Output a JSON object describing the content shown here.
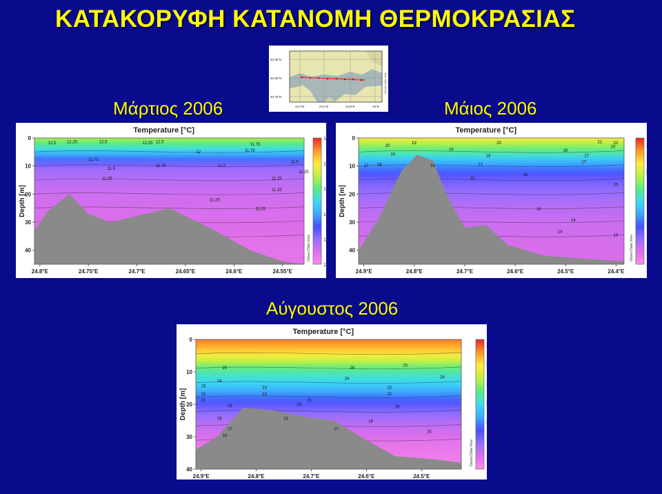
{
  "page": {
    "title": "ΚΑΤΑΚΟΡΥΦΗ ΚΑΤΑΝΟΜΗ ΘΕΡΜΟΚΡΑΣΙΑΣ",
    "colors": {
      "background": "#0a0a8c",
      "title": "#ffff00"
    }
  },
  "minimap": {
    "lat_labels": [
      "40.95°N",
      "40.85°N",
      "40.75°N"
    ],
    "lon_labels": [
      "24.4°E",
      "24.6°E",
      "24.8°E",
      "25°E"
    ],
    "watermark": "Ocean Data View"
  },
  "chart_data": [
    {
      "type": "heatmap",
      "panel_title": "Μάρτιος 2006",
      "title": "Temperature [°C]",
      "ylabel": "Depth [m]",
      "watermark": "Ocean Data View",
      "x_ticks": [
        "24.8°E",
        "24.75°E",
        "24.7°E",
        "24.65°E",
        "24.6°E",
        "24.55°E"
      ],
      "y_ticks": [
        "0",
        "10",
        "20",
        "30",
        "40"
      ],
      "ylim": [
        0,
        45
      ],
      "colorbar": {
        "ticks": [
          "13.5",
          "13",
          "12.5",
          "12",
          "11.5",
          "11"
        ],
        "range": [
          11,
          13.5
        ]
      },
      "contour_labels": [
        "12.5",
        "12.25",
        "12.5",
        "12.25",
        "12.5",
        "12",
        "11.75",
        "11.75",
        "11.71",
        "11.5",
        "11.75",
        "11.5",
        "11.25",
        "11.25",
        "11.25",
        "11.25",
        "11.25",
        "11.25",
        "11.5"
      ],
      "color_by_depth": {
        "depth_m": [
          0,
          3,
          6,
          8,
          10,
          14,
          20,
          30,
          40
        ],
        "temperature_c": [
          12.7,
          12.4,
          12.0,
          11.8,
          11.5,
          11.4,
          11.3,
          11.25,
          11.2
        ]
      },
      "bathymetry": {
        "x_frac": [
          0,
          0.05,
          0.13,
          0.2,
          0.28,
          0.37,
          0.5,
          0.65,
          0.8,
          0.92,
          1.0
        ],
        "depth_m": [
          33,
          26,
          20,
          27,
          30,
          28,
          25,
          32,
          40,
          44,
          45
        ]
      }
    },
    {
      "type": "heatmap",
      "panel_title": "Μάιος 2006",
      "title": "Temperature [°C]",
      "ylabel": "Depth [m]",
      "watermark": "Ocean Data View",
      "x_ticks": [
        "24.9°E",
        "24.8°E",
        "24.7°E",
        "24.6°E",
        "24.5°E",
        "24.4°E"
      ],
      "y_ticks": [
        "0",
        "10",
        "20",
        "30",
        "40"
      ],
      "ylim": [
        0,
        45
      ],
      "colorbar": {
        "ticks": [
          "22",
          "20",
          "18",
          "16",
          "14"
        ],
        "range": [
          13,
          22.5
        ]
      },
      "contour_labels": [
        "20",
        "19",
        "20",
        "19",
        "19",
        "20",
        "21",
        "22",
        "19",
        "18",
        "17",
        "18",
        "17",
        "17",
        "16",
        "16",
        "17",
        "15",
        "15",
        "14",
        "14",
        "14",
        "13"
      ],
      "color_by_depth": {
        "depth_m": [
          0,
          2,
          5,
          8,
          11,
          14,
          18,
          24,
          30,
          40
        ],
        "temperature_c": [
          20.5,
          19.5,
          18.5,
          17.2,
          16.2,
          15.5,
          15.0,
          14.5,
          14.2,
          14.0
        ]
      },
      "bathymetry": {
        "x_frac": [
          0,
          0.08,
          0.16,
          0.22,
          0.28,
          0.33,
          0.4,
          0.48,
          0.56,
          0.7,
          0.85,
          1.0
        ],
        "depth_m": [
          40,
          28,
          12,
          6,
          8,
          20,
          32,
          31,
          38,
          42,
          43,
          44
        ]
      }
    },
    {
      "type": "heatmap",
      "panel_title": "Αύγουστος 2006",
      "title": "Temperature [°C]",
      "ylabel": "Depth [m]",
      "watermark": "Ocean Data View",
      "x_ticks": [
        "24.9°E",
        "24.8°E",
        "24.7°E",
        "24.6°E",
        "24.5°E"
      ],
      "y_ticks": [
        "0",
        "10",
        "20",
        "30",
        "40"
      ],
      "ylim": [
        0,
        40
      ],
      "colorbar": {
        "ticks": [
          "28",
          "26",
          "24",
          "22",
          "20",
          "18",
          "16"
        ],
        "range": [
          15,
          28.5
        ]
      },
      "contour_labels": [
        "25",
        "24",
        "26",
        "25",
        "24",
        "24",
        "23",
        "22",
        "23",
        "23",
        "22",
        "22",
        "21",
        "21",
        "20",
        "20",
        "21",
        "19",
        "18",
        "17",
        "17",
        "18",
        "16",
        "16"
      ],
      "color_by_depth": {
        "depth_m": [
          0,
          3,
          6,
          9,
          12,
          15,
          18,
          22,
          26,
          32,
          40
        ],
        "temperature_c": [
          27.5,
          26.5,
          25,
          23,
          22,
          21,
          19.5,
          18,
          17,
          16,
          15.5
        ]
      },
      "bathymetry": {
        "x_frac": [
          0,
          0.08,
          0.18,
          0.3,
          0.42,
          0.52,
          0.62,
          0.75,
          0.9,
          1.0
        ],
        "depth_m": [
          34,
          30,
          21,
          22,
          24,
          25,
          30,
          36,
          37,
          38
        ]
      }
    }
  ]
}
